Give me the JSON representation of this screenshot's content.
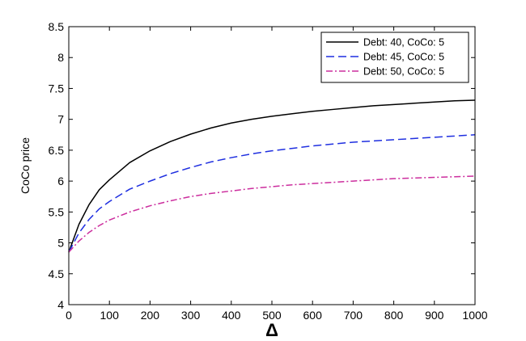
{
  "chart_data": {
    "type": "line",
    "xlabel": "Δ",
    "ylabel": "CoCo price",
    "xlim": [
      0,
      1000
    ],
    "ylim": [
      4,
      8.5
    ],
    "xticks": [
      0,
      100,
      200,
      300,
      400,
      500,
      600,
      700,
      800,
      900,
      1000
    ],
    "yticks": [
      4,
      4.5,
      5,
      5.5,
      6,
      6.5,
      7,
      7.5,
      8,
      8.5
    ],
    "grid": false,
    "legend_position": "top-right",
    "x": [
      0,
      25,
      50,
      75,
      100,
      150,
      200,
      250,
      300,
      350,
      400,
      450,
      500,
      550,
      600,
      650,
      700,
      750,
      800,
      850,
      900,
      950,
      1000
    ],
    "series": [
      {
        "name": "Debt: 40, CoCo: 5",
        "color": "#000000",
        "style": "solid",
        "values": [
          4.85,
          5.3,
          5.62,
          5.86,
          6.02,
          6.3,
          6.49,
          6.64,
          6.76,
          6.86,
          6.94,
          7.0,
          7.05,
          7.09,
          7.13,
          7.16,
          7.19,
          7.22,
          7.24,
          7.26,
          7.28,
          7.3,
          7.31
        ]
      },
      {
        "name": "Debt: 45, CoCo: 5",
        "color": "#1f2fe0",
        "style": "dashed",
        "values": [
          4.85,
          5.16,
          5.38,
          5.55,
          5.67,
          5.87,
          6.0,
          6.12,
          6.22,
          6.31,
          6.38,
          6.44,
          6.49,
          6.53,
          6.57,
          6.6,
          6.63,
          6.65,
          6.67,
          6.69,
          6.71,
          6.73,
          6.75
        ]
      },
      {
        "name": "Debt: 50, CoCo: 5",
        "color": "#cc2e9e",
        "style": "dashdot",
        "values": [
          4.85,
          5.03,
          5.17,
          5.28,
          5.37,
          5.5,
          5.6,
          5.68,
          5.75,
          5.8,
          5.84,
          5.88,
          5.91,
          5.94,
          5.96,
          5.98,
          6.0,
          6.02,
          6.04,
          6.05,
          6.06,
          6.07,
          6.08
        ]
      }
    ]
  }
}
